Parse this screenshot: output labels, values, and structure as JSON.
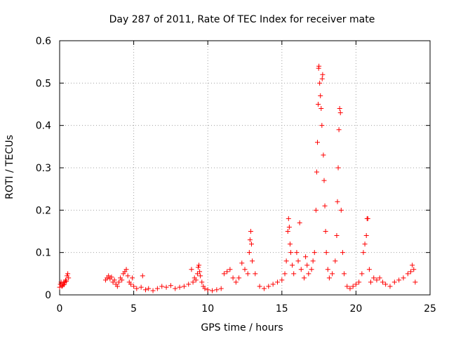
{
  "chart_data": {
    "type": "scatter",
    "title": "Day 287 of 2011, Rate Of TEC Index for receiver mate",
    "xlabel": "GPS time / hours",
    "ylabel": "ROTI / TECUs",
    "xlim": [
      0,
      25
    ],
    "ylim": [
      0,
      0.6
    ],
    "x_ticks": [
      "0",
      "5",
      "10",
      "15",
      "20",
      "25"
    ],
    "y_ticks": [
      "0",
      "0.1",
      "0.2",
      "0.3",
      "0.4",
      "0.5",
      "0.6"
    ],
    "grid": true,
    "marker": "+",
    "marker_color": "#ff0000",
    "series": [
      {
        "points": [
          [
            0.0,
            0.018
          ],
          [
            0.05,
            0.025
          ],
          [
            0.1,
            0.03
          ],
          [
            0.15,
            0.02
          ],
          [
            0.2,
            0.022
          ],
          [
            0.25,
            0.028
          ],
          [
            0.3,
            0.024
          ],
          [
            0.35,
            0.03
          ],
          [
            0.4,
            0.035
          ],
          [
            0.45,
            0.032
          ],
          [
            0.5,
            0.045
          ],
          [
            0.55,
            0.05
          ],
          [
            0.6,
            0.04
          ],
          [
            3.1,
            0.035
          ],
          [
            3.2,
            0.04
          ],
          [
            3.3,
            0.045
          ],
          [
            3.4,
            0.038
          ],
          [
            3.5,
            0.042
          ],
          [
            3.6,
            0.03
          ],
          [
            3.7,
            0.035
          ],
          [
            3.8,
            0.025
          ],
          [
            3.9,
            0.02
          ],
          [
            4.0,
            0.03
          ],
          [
            4.1,
            0.04
          ],
          [
            4.2,
            0.035
          ],
          [
            4.3,
            0.05
          ],
          [
            4.4,
            0.055
          ],
          [
            4.5,
            0.06
          ],
          [
            4.6,
            0.045
          ],
          [
            4.7,
            0.03
          ],
          [
            4.8,
            0.025
          ],
          [
            4.9,
            0.04
          ],
          [
            5.0,
            0.02
          ],
          [
            5.2,
            0.015
          ],
          [
            5.5,
            0.018
          ],
          [
            5.6,
            0.045
          ],
          [
            5.8,
            0.012
          ],
          [
            6.0,
            0.015
          ],
          [
            6.3,
            0.01
          ],
          [
            6.6,
            0.015
          ],
          [
            6.9,
            0.02
          ],
          [
            7.2,
            0.018
          ],
          [
            7.5,
            0.022
          ],
          [
            7.8,
            0.015
          ],
          [
            8.1,
            0.018
          ],
          [
            8.4,
            0.02
          ],
          [
            8.7,
            0.025
          ],
          [
            8.9,
            0.06
          ],
          [
            9.0,
            0.03
          ],
          [
            9.1,
            0.04
          ],
          [
            9.2,
            0.035
          ],
          [
            9.3,
            0.05
          ],
          [
            9.35,
            0.065
          ],
          [
            9.4,
            0.07
          ],
          [
            9.45,
            0.055
          ],
          [
            9.5,
            0.045
          ],
          [
            9.6,
            0.03
          ],
          [
            9.7,
            0.02
          ],
          [
            9.8,
            0.015
          ],
          [
            10.0,
            0.012
          ],
          [
            10.3,
            0.01
          ],
          [
            10.6,
            0.012
          ],
          [
            10.9,
            0.015
          ],
          [
            11.1,
            0.05
          ],
          [
            11.3,
            0.055
          ],
          [
            11.5,
            0.06
          ],
          [
            11.7,
            0.04
          ],
          [
            11.9,
            0.03
          ],
          [
            12.1,
            0.04
          ],
          [
            12.3,
            0.075
          ],
          [
            12.5,
            0.06
          ],
          [
            12.7,
            0.05
          ],
          [
            12.8,
            0.1
          ],
          [
            12.85,
            0.13
          ],
          [
            12.9,
            0.15
          ],
          [
            12.95,
            0.12
          ],
          [
            13.0,
            0.08
          ],
          [
            13.2,
            0.05
          ],
          [
            13.5,
            0.02
          ],
          [
            13.8,
            0.015
          ],
          [
            14.1,
            0.02
          ],
          [
            14.4,
            0.025
          ],
          [
            14.7,
            0.03
          ],
          [
            15.0,
            0.035
          ],
          [
            15.2,
            0.05
          ],
          [
            15.3,
            0.08
          ],
          [
            15.4,
            0.15
          ],
          [
            15.45,
            0.18
          ],
          [
            15.5,
            0.16
          ],
          [
            15.55,
            0.12
          ],
          [
            15.6,
            0.1
          ],
          [
            15.7,
            0.07
          ],
          [
            15.8,
            0.05
          ],
          [
            16.0,
            0.1
          ],
          [
            16.1,
            0.08
          ],
          [
            16.2,
            0.17
          ],
          [
            16.3,
            0.06
          ],
          [
            16.5,
            0.04
          ],
          [
            16.6,
            0.09
          ],
          [
            16.7,
            0.07
          ],
          [
            16.8,
            0.05
          ],
          [
            17.0,
            0.06
          ],
          [
            17.1,
            0.08
          ],
          [
            17.2,
            0.1
          ],
          [
            17.3,
            0.2
          ],
          [
            17.35,
            0.29
          ],
          [
            17.4,
            0.36
          ],
          [
            17.45,
            0.45
          ],
          [
            17.48,
            0.535
          ],
          [
            17.5,
            0.54
          ],
          [
            17.55,
            0.5
          ],
          [
            17.6,
            0.47
          ],
          [
            17.65,
            0.44
          ],
          [
            17.7,
            0.4
          ],
          [
            17.72,
            0.51
          ],
          [
            17.75,
            0.52
          ],
          [
            17.8,
            0.33
          ],
          [
            17.85,
            0.27
          ],
          [
            17.9,
            0.21
          ],
          [
            17.95,
            0.15
          ],
          [
            18.0,
            0.1
          ],
          [
            18.1,
            0.06
          ],
          [
            18.2,
            0.04
          ],
          [
            18.4,
            0.05
          ],
          [
            18.6,
            0.08
          ],
          [
            18.7,
            0.14
          ],
          [
            18.75,
            0.22
          ],
          [
            18.8,
            0.3
          ],
          [
            18.85,
            0.39
          ],
          [
            18.9,
            0.44
          ],
          [
            18.95,
            0.43
          ],
          [
            19.0,
            0.2
          ],
          [
            19.1,
            0.1
          ],
          [
            19.2,
            0.05
          ],
          [
            19.4,
            0.02
          ],
          [
            19.6,
            0.015
          ],
          [
            19.8,
            0.02
          ],
          [
            20.0,
            0.025
          ],
          [
            20.2,
            0.03
          ],
          [
            20.4,
            0.05
          ],
          [
            20.5,
            0.1
          ],
          [
            20.6,
            0.12
          ],
          [
            20.7,
            0.14
          ],
          [
            20.75,
            0.18
          ],
          [
            20.8,
            0.18
          ],
          [
            20.9,
            0.06
          ],
          [
            21.0,
            0.03
          ],
          [
            21.2,
            0.04
          ],
          [
            21.4,
            0.035
          ],
          [
            21.6,
            0.04
          ],
          [
            21.8,
            0.03
          ],
          [
            22.0,
            0.025
          ],
          [
            22.3,
            0.02
          ],
          [
            22.6,
            0.03
          ],
          [
            22.9,
            0.035
          ],
          [
            23.2,
            0.04
          ],
          [
            23.5,
            0.05
          ],
          [
            23.7,
            0.055
          ],
          [
            23.8,
            0.07
          ],
          [
            23.9,
            0.06
          ],
          [
            24.0,
            0.03
          ]
        ]
      }
    ]
  }
}
